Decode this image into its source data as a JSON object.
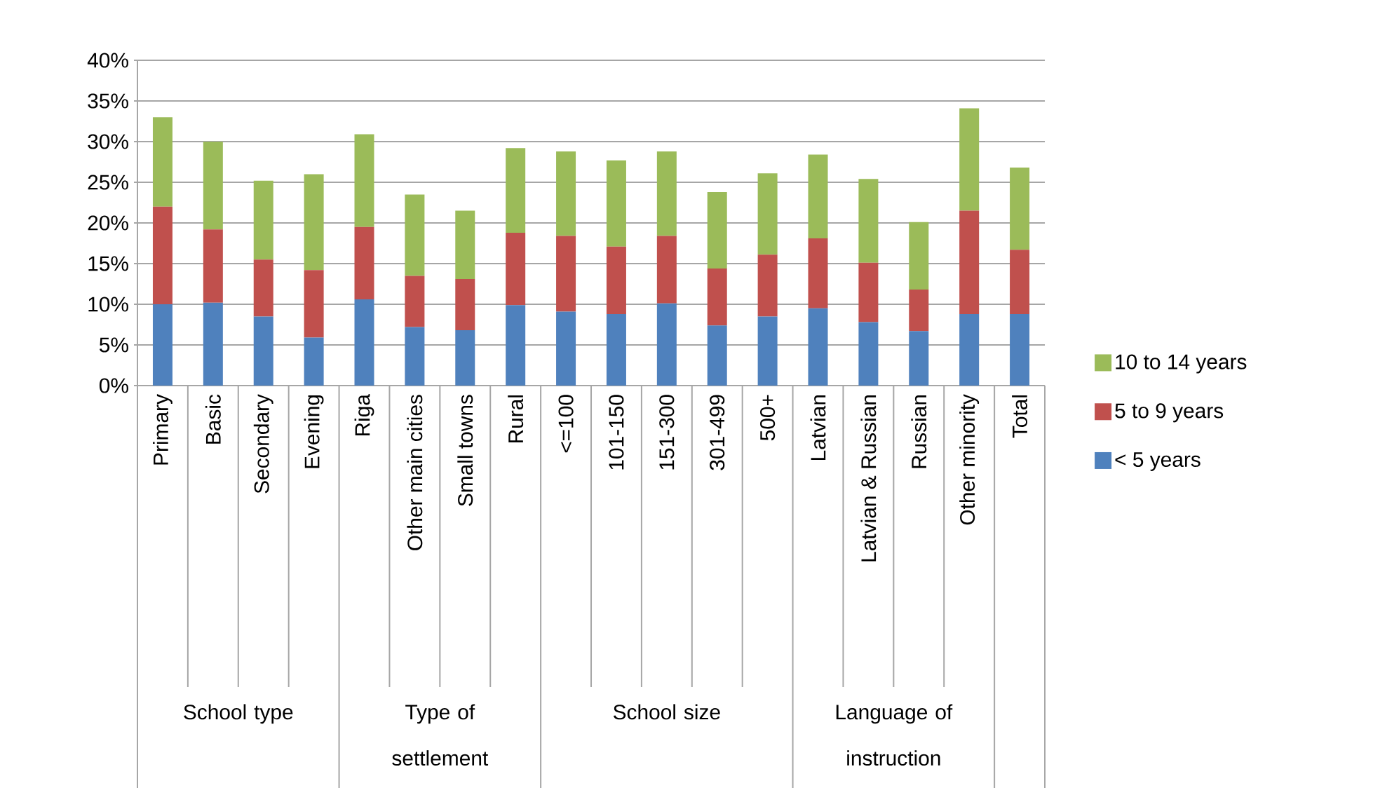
{
  "chart_data": {
    "type": "bar",
    "stacked": true,
    "categories": [
      "Primary",
      "Basic",
      "Secondary",
      "Evening",
      "Riga",
      "Other main cities",
      "Small towns",
      "Rural",
      "<=100",
      "101-150",
      "151-300",
      "301-499",
      "500+",
      "Latvian",
      "Latvian & Russian",
      "Russian",
      "Other minority",
      "Total"
    ],
    "series": [
      {
        "name": "< 5 years",
        "color": "#4f81bd",
        "values": [
          10,
          10.2,
          8.5,
          5.9,
          10.6,
          7.2,
          6.8,
          9.9,
          9.1,
          8.8,
          10.1,
          7.4,
          8.5,
          9.5,
          7.8,
          6.7,
          8.8,
          8.8
        ]
      },
      {
        "name": "5 to 9 years",
        "color": "#c0504d",
        "values": [
          12,
          9,
          7,
          8.3,
          8.9,
          6.3,
          6.3,
          8.9,
          9.3,
          8.3,
          8.3,
          7,
          7.6,
          8.6,
          7.3,
          5.1,
          12.7,
          7.9
        ]
      },
      {
        "name": "10 to 14 years",
        "color": "#9bbb59",
        "values": [
          11,
          10.8,
          9.7,
          11.8,
          11.4,
          10,
          8.4,
          10.4,
          10.4,
          10.6,
          10.4,
          9.4,
          10,
          10.3,
          10.3,
          8.3,
          12.6,
          10.1
        ]
      }
    ],
    "annotations": [
      "School type",
      "Type of settlement",
      "School size",
      "Language of instruction"
    ],
    "ylim": [
      0,
      40
    ],
    "yticks": [
      {
        "value": 0,
        "label": "0%"
      },
      {
        "value": 5,
        "label": "5%"
      },
      {
        "value": 10,
        "label": "10%"
      },
      {
        "value": 15,
        "label": "15%"
      },
      {
        "value": 20,
        "label": "20%"
      },
      {
        "value": 25,
        "label": "25%"
      },
      {
        "value": 30,
        "label": "30%"
      },
      {
        "value": 35,
        "label": "35%"
      },
      {
        "value": 40,
        "label": "40%"
      }
    ],
    "grid": "y",
    "legend": "right"
  }
}
